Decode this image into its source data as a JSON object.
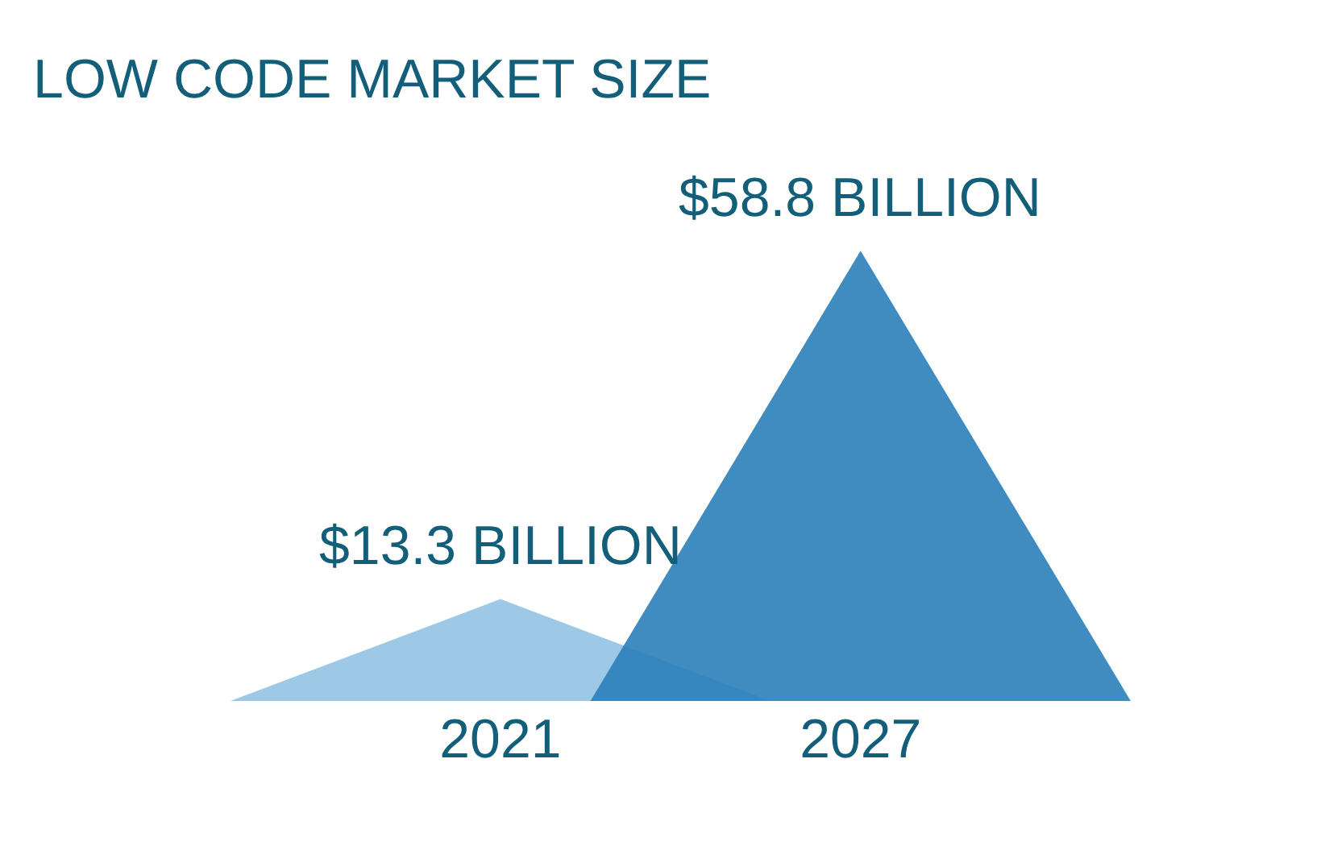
{
  "chart_data": {
    "type": "other",
    "title": "LOW CODE MARKET SIZE",
    "categories": [
      "2021",
      "2027"
    ],
    "values": [
      13.3,
      58.8
    ],
    "value_labels": [
      "$13.3 BILLION",
      "$58.8 BILLION"
    ],
    "colors": [
      "#9dc8e6",
      "#2b7fba"
    ]
  }
}
